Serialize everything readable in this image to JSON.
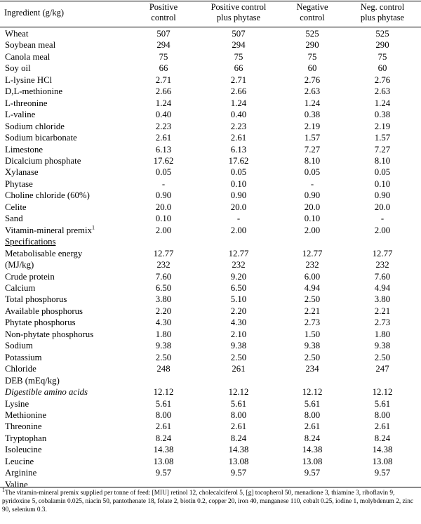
{
  "table": {
    "headers": [
      "Ingredient (g/kg)",
      "Positive control",
      "Positive control plus phytase",
      "Negative control",
      "Neg. control plus phytase"
    ],
    "header_lines": [
      [
        "Ingredient (g/kg)"
      ],
      [
        "Positive",
        "control"
      ],
      [
        "Positive control",
        "plus phytase"
      ],
      [
        "Negative",
        "control"
      ],
      [
        "Neg. control",
        "plus phytase"
      ]
    ],
    "rows": [
      {
        "label": "Wheat",
        "values": [
          "507",
          "507",
          "525",
          "525"
        ]
      },
      {
        "label": "Soybean meal",
        "values": [
          "294",
          "294",
          "290",
          "290"
        ]
      },
      {
        "label": "Canola meal",
        "values": [
          "75",
          "75",
          "75",
          "75"
        ]
      },
      {
        "label": "Soy oil",
        "values": [
          "66",
          "66",
          "60",
          "60"
        ]
      },
      {
        "label": "L-lysine HCl",
        "values": [
          "2.71",
          "2.71",
          "2.76",
          "2.76"
        ]
      },
      {
        "label": "D,L-methionine",
        "values": [
          "2.66",
          "2.66",
          "2.63",
          "2.63"
        ]
      },
      {
        "label": "L-threonine",
        "values": [
          "1.24",
          "1.24",
          "1.24",
          "1.24"
        ]
      },
      {
        "label": "L-valine",
        "values": [
          "0.40",
          "0.40",
          "0.38",
          "0.38"
        ]
      },
      {
        "label": "Sodium chloride",
        "values": [
          "2.23",
          "2.23",
          "2.19",
          "2.19"
        ]
      },
      {
        "label": "Sodium bicarbonate",
        "values": [
          "2.61",
          "2.61",
          "1.57",
          "1.57"
        ]
      },
      {
        "label": "Limestone",
        "values": [
          "6.13",
          "6.13",
          "7.27",
          "7.27"
        ]
      },
      {
        "label": "Dicalcium phosphate",
        "values": [
          "17.62",
          "17.62",
          "8.10",
          "8.10"
        ]
      },
      {
        "label": "Xylanase",
        "values": [
          "0.05",
          "0.05",
          "0.05",
          "0.05"
        ]
      },
      {
        "label": "Phytase",
        "values": [
          "-",
          "0.10",
          "-",
          "0.10"
        ]
      },
      {
        "label": "Choline chloride (60%)",
        "values": [
          "0.90",
          "0.90",
          "0.90",
          "0.90"
        ]
      },
      {
        "label": "Celite",
        "values": [
          "20.0",
          "20.0",
          "20.0",
          "20.0"
        ]
      },
      {
        "label": "Sand",
        "values": [
          "0.10",
          "-",
          "0.10",
          "-"
        ]
      },
      {
        "label": "Vitamin-mineral premix",
        "sup": "1",
        "values": [
          "2.00",
          "2.00",
          "2.00",
          "2.00"
        ]
      },
      {
        "label": "Specifications",
        "style": "underline",
        "values": [
          "",
          "",
          "",
          ""
        ]
      },
      {
        "label": "Metabolisable energy",
        "values": [
          "12.77",
          "12.77",
          "12.77",
          "12.77"
        ]
      },
      {
        "label": "(MJ/kg)",
        "values": [
          "232",
          "232",
          "232",
          "232"
        ]
      },
      {
        "label": "Crude protein",
        "values": [
          "7.60",
          "9.20",
          "6.00",
          "7.60"
        ]
      },
      {
        "label": "Calcium",
        "values": [
          "6.50",
          "6.50",
          "4.94",
          "4.94"
        ]
      },
      {
        "label": "Total phosphorus",
        "values": [
          "3.80",
          "5.10",
          "2.50",
          "3.80"
        ]
      },
      {
        "label": "Available phosphorus",
        "values": [
          "2.20",
          "2.20",
          "2.21",
          "2.21"
        ]
      },
      {
        "label": "Phytate phosphorus",
        "values": [
          "4.30",
          "4.30",
          "2.73",
          "2.73"
        ]
      },
      {
        "label": "Non-phytate phosphorus",
        "values": [
          "1.80",
          "2.10",
          "1.50",
          "1.80"
        ]
      },
      {
        "label": "Sodium",
        "values": [
          "9.38",
          "9.38",
          "9.38",
          "9.38"
        ]
      },
      {
        "label": "Potassium",
        "values": [
          "2.50",
          "2.50",
          "2.50",
          "2.50"
        ]
      },
      {
        "label": "Chloride",
        "values": [
          "248",
          "261",
          "234",
          "247"
        ]
      },
      {
        "label": "DEB (mEq/kg)",
        "values": [
          "",
          "",
          "",
          ""
        ]
      },
      {
        "label": "Digestible amino acids",
        "style": "italic",
        "values": [
          "12.12",
          "12.12",
          "12.12",
          "12.12"
        ]
      },
      {
        "label": "Lysine",
        "values": [
          "5.61",
          "5.61",
          "5.61",
          "5.61"
        ]
      },
      {
        "label": "Methionine",
        "values": [
          "8.00",
          "8.00",
          "8.00",
          "8.00"
        ]
      },
      {
        "label": "Threonine",
        "values": [
          "2.61",
          "2.61",
          "2.61",
          "2.61"
        ]
      },
      {
        "label": "Tryptophan",
        "values": [
          "8.24",
          "8.24",
          "8.24",
          "8.24"
        ]
      },
      {
        "label": "Isoleucine",
        "values": [
          "14.38",
          "14.38",
          "14.38",
          "14.38"
        ]
      },
      {
        "label": "Leucine",
        "values": [
          "13.08",
          "13.08",
          "13.08",
          "13.08"
        ]
      },
      {
        "label": "Arginine",
        "values": [
          "9.57",
          "9.57",
          "9.57",
          "9.57"
        ]
      },
      {
        "label": "Valine",
        "values": [
          "",
          "",
          "",
          ""
        ]
      }
    ]
  },
  "footnote": {
    "mark": "1",
    "text": "The vitamin-mineral premix supplied per tonne of feed: [MIU] retinol 12, cholecalciferol 5, [g] tocopherol 50, menadione 3, thiamine 3, riboflavin 9, pyridoxine 5, cobalamin 0.025, niacin 50, pantothenate 18, folate 2, biotin 0.2, copper 20, iron 40, manganese 110, cobalt 0.25, iodine 1, molybdenum 2, zinc 90, selenium 0.3."
  }
}
